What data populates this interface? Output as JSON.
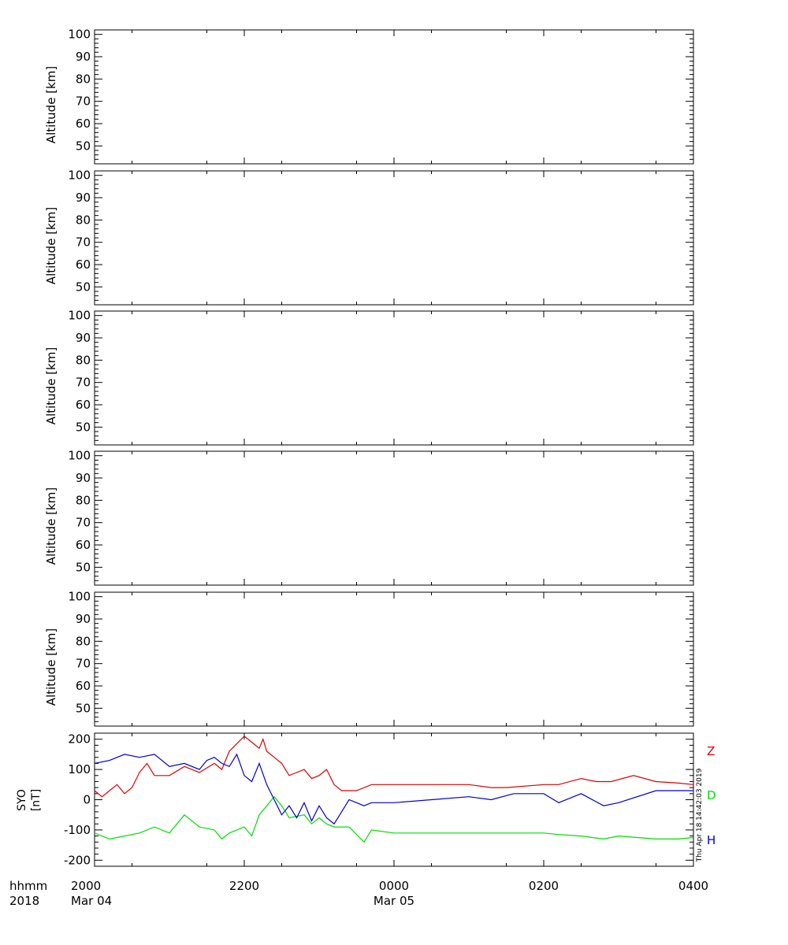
{
  "panels": [
    {
      "ylabel": "Altitude [km]",
      "yticks": [
        "100",
        "90",
        "80",
        "70",
        "60",
        "50"
      ]
    },
    {
      "ylabel": "Altitude [km]",
      "yticks": [
        "100",
        "90",
        "80",
        "70",
        "60",
        "50"
      ]
    },
    {
      "ylabel": "Altitude [km]",
      "yticks": [
        "100",
        "90",
        "80",
        "70",
        "60",
        "50"
      ]
    },
    {
      "ylabel": "Altitude [km]",
      "yticks": [
        "100",
        "90",
        "80",
        "70",
        "60",
        "50"
      ]
    },
    {
      "ylabel": "Altitude [km]",
      "yticks": [
        "100",
        "90",
        "80",
        "70",
        "60",
        "50"
      ]
    }
  ],
  "x_axis": {
    "row1_label": "hhmm",
    "row2_label": "2018",
    "ticks": [
      {
        "time": "2000",
        "date": "Mar 04"
      },
      {
        "time": "2200",
        "date": ""
      },
      {
        "time": "0000",
        "date": "Mar 05"
      },
      {
        "time": "0200",
        "date": ""
      },
      {
        "time": "0400",
        "date": ""
      }
    ]
  },
  "timestamp": "Thu Apr 18 14:42:03 2019",
  "colors": {
    "Z": "#dd0000",
    "D": "#00dd00",
    "H": "#0000cc"
  },
  "chart_data": {
    "type": "line",
    "title": "",
    "ylabel_line1": "SYO",
    "ylabel_line2": "[nT]",
    "ylim": [
      -220,
      220
    ],
    "yticks": [
      200,
      100,
      0,
      -100,
      -200
    ],
    "xlim_hours": [
      20,
      28
    ],
    "series": [
      {
        "name": "Z",
        "x": [
          20.0,
          20.1,
          20.2,
          20.3,
          20.4,
          20.5,
          20.6,
          20.7,
          20.8,
          21.0,
          21.2,
          21.4,
          21.6,
          21.7,
          21.8,
          22.0,
          22.1,
          22.2,
          22.25,
          22.3,
          22.4,
          22.5,
          22.6,
          22.8,
          22.9,
          23.0,
          23.1,
          23.2,
          23.3,
          23.5,
          23.7,
          24.0,
          24.5,
          25.0,
          25.3,
          25.5,
          26.0,
          26.2,
          26.5,
          26.7,
          26.9,
          27.2,
          27.5,
          27.8,
          28.0
        ],
        "values": [
          30,
          10,
          30,
          50,
          20,
          40,
          90,
          120,
          80,
          80,
          110,
          90,
          120,
          100,
          160,
          210,
          190,
          170,
          200,
          160,
          140,
          120,
          80,
          100,
          70,
          80,
          100,
          50,
          30,
          30,
          50,
          50,
          50,
          50,
          40,
          40,
          50,
          50,
          70,
          60,
          60,
          80,
          60,
          55,
          50
        ]
      },
      {
        "name": "D",
        "x": [
          20.0,
          20.2,
          20.4,
          20.6,
          20.8,
          21.0,
          21.2,
          21.4,
          21.6,
          21.7,
          21.8,
          22.0,
          22.1,
          22.2,
          22.3,
          22.4,
          22.5,
          22.6,
          22.8,
          22.9,
          23.0,
          23.1,
          23.2,
          23.4,
          23.6,
          23.7,
          24.0,
          24.5,
          25.0,
          25.3,
          25.6,
          26.0,
          26.2,
          26.5,
          26.8,
          27.0,
          27.5,
          27.8,
          28.0
        ],
        "values": [
          -110,
          -130,
          -120,
          -110,
          -90,
          -110,
          -50,
          -90,
          -100,
          -130,
          -110,
          -90,
          -120,
          -50,
          -20,
          10,
          -20,
          -60,
          -50,
          -80,
          -60,
          -80,
          -90,
          -90,
          -140,
          -100,
          -110,
          -110,
          -110,
          -110,
          -110,
          -110,
          -115,
          -120,
          -130,
          -120,
          -130,
          -130,
          -125
        ]
      },
      {
        "name": "H",
        "x": [
          20.0,
          20.2,
          20.4,
          20.6,
          20.8,
          21.0,
          21.2,
          21.4,
          21.5,
          21.6,
          21.7,
          21.8,
          21.9,
          22.0,
          22.1,
          22.2,
          22.3,
          22.4,
          22.5,
          22.6,
          22.7,
          22.8,
          22.9,
          23.0,
          23.1,
          23.2,
          23.3,
          23.4,
          23.5,
          23.6,
          23.7,
          23.8,
          24.0,
          24.5,
          25.0,
          25.3,
          25.6,
          26.0,
          26.2,
          26.5,
          26.8,
          27.0,
          27.5,
          28.0
        ],
        "values": [
          120,
          130,
          150,
          140,
          150,
          110,
          120,
          100,
          130,
          140,
          120,
          110,
          150,
          80,
          60,
          120,
          50,
          0,
          -50,
          -20,
          -60,
          -10,
          -70,
          -20,
          -60,
          -80,
          -40,
          0,
          -10,
          -20,
          -10,
          -10,
          -10,
          0,
          10,
          0,
          20,
          20,
          -10,
          20,
          -20,
          -10,
          30,
          30
        ]
      }
    ]
  }
}
